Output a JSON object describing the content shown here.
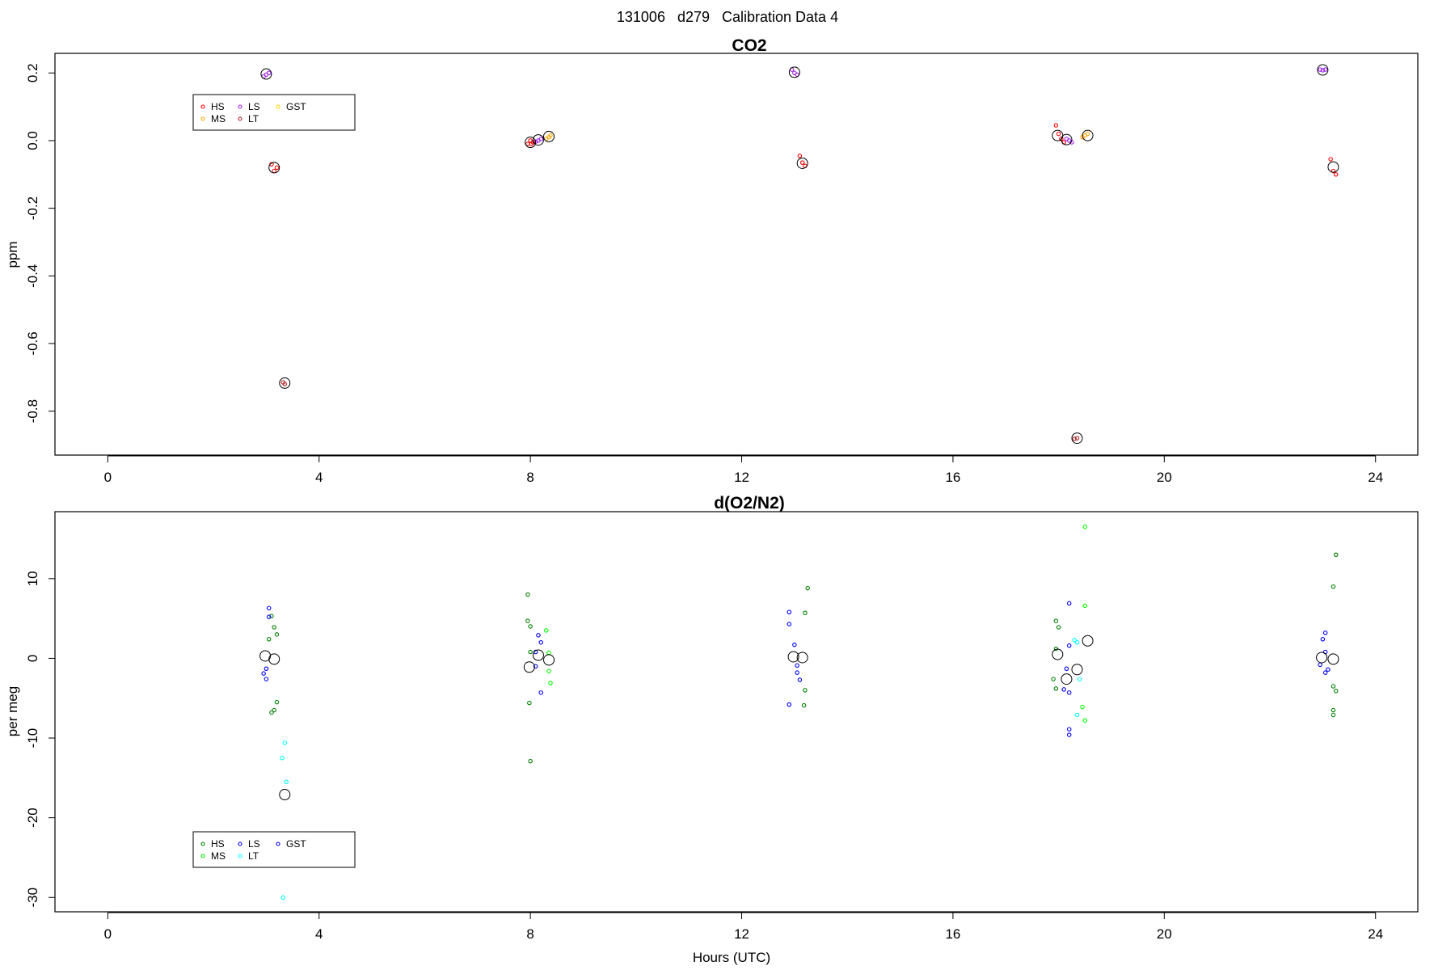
{
  "figure": {
    "suptitle": "131006   d279   Calibration Data 4"
  },
  "chart_data": [
    {
      "type": "scatter",
      "title": "CO2",
      "xlabel": "",
      "ylabel": "ppm",
      "xlim": [
        -1.0,
        24.8
      ],
      "ylim": [
        -0.93,
        0.258
      ],
      "xticks": [
        0,
        4,
        8,
        12,
        16,
        20,
        24
      ],
      "yticks": [
        0.2,
        0.0,
        -0.2,
        -0.4,
        -0.6,
        -0.8
      ],
      "ytick_labels": [
        "0.2",
        "0.0",
        "-0.2",
        "-0.4",
        "-0.6",
        "-0.8"
      ],
      "legend": {
        "placement": "top-left",
        "cols": [
          [
            "HS",
            "MS"
          ],
          [
            "LS",
            "LT"
          ],
          [
            "GST"
          ]
        ]
      },
      "series": [
        {
          "name": "HS",
          "color": "#ff0000",
          "points": [
            [
              3.1,
              -0.07
            ],
            [
              3.15,
              -0.09
            ],
            [
              3.2,
              -0.08
            ],
            [
              7.95,
              -0.01
            ],
            [
              8.0,
              0.0
            ],
            [
              8.02,
              -0.01
            ],
            [
              8.05,
              -0.005
            ],
            [
              13.1,
              -0.045
            ],
            [
              13.15,
              -0.065
            ],
            [
              13.2,
              -0.075
            ],
            [
              17.95,
              0.045
            ],
            [
              18.0,
              0.02
            ],
            [
              18.05,
              0.005
            ],
            [
              18.1,
              -0.005
            ],
            [
              23.15,
              -0.055
            ],
            [
              23.2,
              -0.09
            ],
            [
              23.25,
              -0.1
            ]
          ]
        },
        {
          "name": "MS",
          "color": "#ffa500",
          "points": [
            [
              8.3,
              0.005
            ],
            [
              8.35,
              0.01
            ],
            [
              8.38,
              0.015
            ],
            [
              18.45,
              0.01
            ],
            [
              18.5,
              0.015
            ],
            [
              18.55,
              0.02
            ]
          ]
        },
        {
          "name": "LS",
          "color": "#a020f0",
          "points": [
            [
              2.95,
              0.19
            ],
            [
              3.0,
              0.195
            ],
            [
              3.05,
              0.2
            ],
            [
              8.1,
              -0.003
            ],
            [
              8.15,
              0.0
            ],
            [
              8.2,
              0.005
            ],
            [
              12.95,
              0.21
            ],
            [
              13.0,
              0.2
            ],
            [
              13.05,
              0.195
            ],
            [
              18.15,
              0.005
            ],
            [
              18.2,
              0.0
            ],
            [
              18.25,
              -0.005
            ],
            [
              22.95,
              0.21
            ],
            [
              23.0,
              0.208
            ],
            [
              23.05,
              0.21
            ]
          ]
        },
        {
          "name": "LT",
          "color": "#b22222",
          "points": [
            [
              3.32,
              -0.715
            ],
            [
              3.35,
              -0.72
            ],
            [
              18.3,
              -0.882
            ],
            [
              18.35,
              -0.88
            ]
          ]
        },
        {
          "name": "GST",
          "color": "#ffd700",
          "points": []
        }
      ],
      "means": [
        [
          3.0,
          0.197
        ],
        [
          3.15,
          -0.08
        ],
        [
          3.35,
          -0.717
        ],
        [
          8.0,
          -0.005
        ],
        [
          8.15,
          0.002
        ],
        [
          8.35,
          0.012
        ],
        [
          13.0,
          0.202
        ],
        [
          13.15,
          -0.067
        ],
        [
          17.98,
          0.015
        ],
        [
          18.15,
          0.003
        ],
        [
          18.35,
          -0.88
        ],
        [
          18.55,
          0.015
        ],
        [
          23.0,
          0.209
        ],
        [
          23.2,
          -0.078
        ]
      ]
    },
    {
      "type": "scatter",
      "title": "d(O2/N2)",
      "xlabel": "Hours (UTC)",
      "ylabel": "per meg",
      "xlim": [
        -1.0,
        24.8
      ],
      "ylim": [
        -31.8,
        18.4
      ],
      "xticks": [
        0,
        4,
        8,
        12,
        16,
        20,
        24
      ],
      "yticks": [
        10,
        0,
        -10,
        -20,
        -30
      ],
      "ytick_labels": [
        "10",
        "0",
        "-10",
        "-20",
        "-30"
      ],
      "legend": {
        "placement": "bottom-left",
        "cols": [
          [
            "HS",
            "MS"
          ],
          [
            "LS",
            "LT"
          ],
          [
            "GST"
          ]
        ]
      },
      "series": [
        {
          "name": "HS",
          "color": "#008000",
          "points": [
            [
              3.1,
              5.3
            ],
            [
              3.15,
              3.9
            ],
            [
              3.05,
              2.4
            ],
            [
              3.2,
              3.0
            ],
            [
              3.2,
              -5.5
            ],
            [
              3.15,
              -6.5
            ],
            [
              3.1,
              -6.8
            ],
            [
              7.95,
              8.0
            ],
            [
              7.95,
              4.7
            ],
            [
              8.0,
              4.0
            ],
            [
              8.0,
              0.8
            ],
            [
              7.98,
              -5.6
            ],
            [
              8.0,
              -12.9
            ],
            [
              13.2,
              5.7
            ],
            [
              13.25,
              8.8
            ],
            [
              13.2,
              -4.0
            ],
            [
              13.18,
              -5.9
            ],
            [
              17.95,
              4.7
            ],
            [
              18.0,
              3.9
            ],
            [
              17.95,
              1.2
            ],
            [
              17.9,
              -2.6
            ],
            [
              17.95,
              -3.8
            ],
            [
              23.2,
              9.0
            ],
            [
              23.25,
              13.0
            ],
            [
              23.2,
              -3.5
            ],
            [
              23.2,
              -6.5
            ],
            [
              23.2,
              -7.1
            ],
            [
              23.25,
              -4.1
            ]
          ]
        },
        {
          "name": "MS",
          "color": "#00ff00",
          "points": [
            [
              8.3,
              3.5
            ],
            [
              8.35,
              0.7
            ],
            [
              8.35,
              -1.6
            ],
            [
              8.38,
              -3.1
            ],
            [
              18.5,
              16.5
            ],
            [
              18.5,
              6.6
            ],
            [
              18.45,
              -6.1
            ],
            [
              18.5,
              -7.8
            ]
          ]
        },
        {
          "name": "LS",
          "color": "#0000ff",
          "points": [
            [
              3.05,
              6.3
            ],
            [
              3.05,
              5.2
            ],
            [
              2.95,
              -1.9
            ],
            [
              3.0,
              -1.3
            ],
            [
              3.0,
              -2.6
            ],
            [
              8.15,
              2.9
            ],
            [
              8.2,
              2.0
            ],
            [
              8.1,
              0.8
            ],
            [
              8.2,
              -4.3
            ],
            [
              8.1,
              -1.0
            ],
            [
              12.9,
              5.8
            ],
            [
              12.9,
              4.3
            ],
            [
              13.0,
              1.7
            ],
            [
              13.05,
              -0.9
            ],
            [
              13.05,
              -1.8
            ],
            [
              13.1,
              -2.7
            ],
            [
              12.9,
              -5.8
            ],
            [
              18.2,
              6.9
            ],
            [
              18.2,
              1.6
            ],
            [
              18.15,
              -1.3
            ],
            [
              18.1,
              -3.9
            ],
            [
              18.2,
              -4.3
            ],
            [
              18.2,
              -8.9
            ],
            [
              18.2,
              -9.6
            ],
            [
              23.05,
              3.2
            ],
            [
              23.0,
              2.4
            ],
            [
              23.05,
              0.8
            ],
            [
              23.1,
              -1.4
            ],
            [
              23.05,
              -1.8
            ],
            [
              22.95,
              -0.8
            ]
          ]
        },
        {
          "name": "LT",
          "color": "#00ffff",
          "points": [
            [
              3.35,
              -10.6
            ],
            [
              3.3,
              -12.5
            ],
            [
              3.38,
              -15.5
            ],
            [
              3.32,
              -30.0
            ],
            [
              18.3,
              2.3
            ],
            [
              18.35,
              2.0
            ],
            [
              18.4,
              -2.6
            ],
            [
              18.35,
              -7.1
            ]
          ]
        },
        {
          "name": "GST",
          "color": "#0000ff",
          "points": []
        }
      ],
      "means": [
        [
          2.98,
          0.3
        ],
        [
          3.15,
          -0.1
        ],
        [
          3.35,
          -17.1
        ],
        [
          7.98,
          -1.1
        ],
        [
          8.15,
          0.4
        ],
        [
          8.35,
          -0.2
        ],
        [
          12.98,
          0.2
        ],
        [
          13.15,
          0.1
        ],
        [
          17.98,
          0.5
        ],
        [
          18.15,
          -2.6
        ],
        [
          18.35,
          -1.4
        ],
        [
          18.55,
          2.2
        ],
        [
          22.98,
          0.1
        ],
        [
          23.2,
          -0.1
        ]
      ]
    }
  ]
}
